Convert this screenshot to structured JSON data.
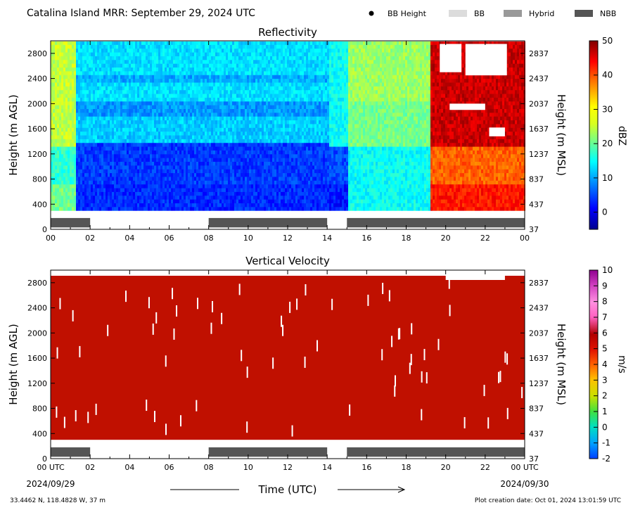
{
  "header": {
    "title": "Catalina Island MRR:  September 29, 2024 UTC",
    "legend": [
      {
        "label": "BB Height",
        "symbol": "dot",
        "color": "#000000"
      },
      {
        "label": "BB",
        "symbol": "swatch",
        "color": "#dcdcdc"
      },
      {
        "label": "Hybrid",
        "symbol": "swatch",
        "color": "#999999"
      },
      {
        "label": "NBB",
        "symbol": "swatch",
        "color": "#555555"
      }
    ]
  },
  "chart_data": [
    {
      "type": "heatmap",
      "title": "Reflectivity",
      "ylabel": "Height (m AGL)",
      "ylabel_right": "Height (m MSL)",
      "x_range_hours": [
        0,
        24
      ],
      "ylim": [
        0,
        3000
      ],
      "y_ticks": [
        "0",
        "400",
        "800",
        "1200",
        "1600",
        "2000",
        "2400",
        "2800"
      ],
      "y_ticks_right": [
        "37",
        "437",
        "837",
        "1237",
        "1637",
        "2037",
        "2437",
        "2837"
      ],
      "x_ticks": [
        "00",
        "02",
        "04",
        "06",
        "08",
        "10",
        "12",
        "14",
        "16",
        "18",
        "20",
        "22",
        "00"
      ],
      "colorbar": {
        "label": "dBZ",
        "min": -5,
        "max": 50,
        "ticks": [
          "0",
          "10",
          "20",
          "30",
          "40",
          "50"
        ],
        "colormap": "jet"
      },
      "data_floor_m": 300,
      "bb_classification": [
        {
          "start": 0.0,
          "end": 2.0,
          "class": "NBB"
        },
        {
          "start": 8.0,
          "end": 14.0,
          "class": "NBB"
        },
        {
          "start": 15.0,
          "end": 24.0,
          "class": "NBB"
        }
      ]
    },
    {
      "type": "heatmap",
      "title": "Vertical Velocity",
      "ylabel": "Height (m AGL)",
      "ylabel_right": "Height (m MSL)",
      "x_range_hours": [
        0,
        24
      ],
      "ylim": [
        0,
        3000
      ],
      "y_ticks": [
        "0",
        "400",
        "800",
        "1200",
        "1600",
        "2000",
        "2400",
        "2800"
      ],
      "y_ticks_right": [
        "37",
        "437",
        "837",
        "1237",
        "1637",
        "2037",
        "2437",
        "2837"
      ],
      "x_ticks": [
        "00 UTC",
        "02",
        "04",
        "06",
        "08",
        "10",
        "12",
        "14",
        "16",
        "18",
        "20",
        "22",
        "00 UTC"
      ],
      "x_dates": [
        "2024/09/29",
        "2024/09/30"
      ],
      "xlabel": "Time (UTC)",
      "colorbar": {
        "label": "m/s",
        "min": -2,
        "max": 10,
        "ticks": [
          "-2",
          "-1",
          "0",
          "1",
          "2",
          "3",
          "4",
          "5",
          "6",
          "7",
          "8",
          "9",
          "10"
        ],
        "colormap": "velocity"
      },
      "field_value": 6,
      "data_floor_m": 300,
      "bb_classification": [
        {
          "start": 0.0,
          "end": 2.0,
          "class": "NBB"
        },
        {
          "start": 8.0,
          "end": 14.0,
          "class": "NBB"
        },
        {
          "start": 15.0,
          "end": 24.0,
          "class": "NBB"
        }
      ]
    }
  ],
  "footer": {
    "location": "33.4462 N, 118.4828 W, 37 m",
    "creation": "Plot creation date: Oct 01, 2024 13:01:59 UTC"
  },
  "colors": {
    "nbb": "#555555",
    "velocity_field": "#c01000"
  }
}
